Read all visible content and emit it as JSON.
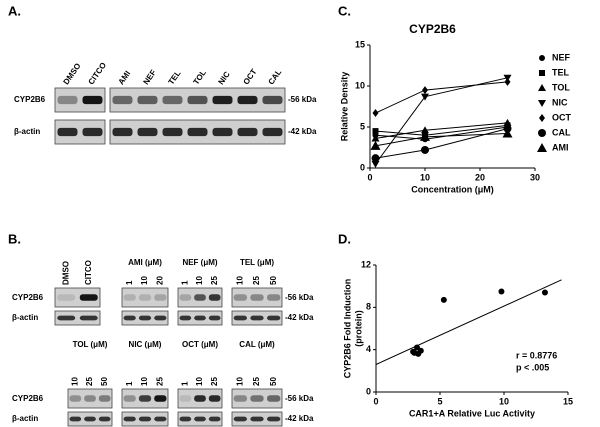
{
  "panel_a": {
    "label": "A.",
    "lanes_left": [
      "DMSO",
      "CITCO"
    ],
    "lanes_right": [
      "AMI",
      "NEF",
      "TEL",
      "TOL",
      "NIC",
      "OCT",
      "CAL"
    ],
    "rows": [
      "CYP2B6",
      "β-actin"
    ],
    "sizes": [
      "-56 kDa",
      "-42 kDa"
    ]
  },
  "panel_b": {
    "label": "B.",
    "rows": [
      "CYP2B6",
      "β-actin"
    ],
    "sizes": [
      "-56 kDa",
      "-42 kDa"
    ],
    "top": [
      {
        "lanes": [
          "DMSO",
          "CITCO"
        ]
      },
      {
        "title": "AMI (μM)",
        "lanes": [
          "1",
          "10",
          "20"
        ]
      },
      {
        "title": "NEF (μM)",
        "lanes": [
          "1",
          "10",
          "25"
        ]
      },
      {
        "title": "TEL (μM)",
        "lanes": [
          "10",
          "25",
          "50"
        ]
      }
    ],
    "bottom": [
      {
        "title": "TOL (μM)",
        "lanes": [
          "10",
          "25",
          "50"
        ]
      },
      {
        "title": "NIC (μM)",
        "lanes": [
          "1",
          "10",
          "25"
        ]
      },
      {
        "title": "OCT (μM)",
        "lanes": [
          "1",
          "10",
          "25"
        ]
      },
      {
        "title": "CAL (μM)",
        "lanes": [
          "10",
          "25",
          "50"
        ]
      }
    ]
  },
  "chart_data": [
    {
      "type": "line",
      "panel": "C.",
      "title": "CYP2B6",
      "x_label": "Concentration (μM)",
      "y_label": "Relative Density",
      "x": [
        1,
        10,
        25
      ],
      "xlim": [
        0,
        30
      ],
      "xticks": [
        0,
        10,
        20,
        30
      ],
      "ylim": [
        0,
        15
      ],
      "yticks": [
        0,
        5,
        10,
        15
      ],
      "legend": "right",
      "color": "#000000",
      "series": [
        {
          "name": "NEF",
          "marker": "circle",
          "values": [
            4.0,
            3.5,
            5.0
          ]
        },
        {
          "name": "TEL",
          "marker": "square",
          "values": [
            4.5,
            4.0,
            5.2
          ]
        },
        {
          "name": "TOL",
          "marker": "triangle",
          "values": [
            3.6,
            4.6,
            5.5
          ]
        },
        {
          "name": "NIC",
          "marker": "triangle-down",
          "values": [
            0.5,
            8.7,
            11.0
          ]
        },
        {
          "name": "OCT",
          "marker": "diamond",
          "values": [
            6.7,
            9.5,
            10.5
          ]
        },
        {
          "name": "CAL",
          "marker": "big-circle",
          "values": [
            1.2,
            2.2,
            4.8
          ]
        },
        {
          "name": "AMI",
          "marker": "big-triangle",
          "values": [
            2.7,
            3.8,
            4.2
          ]
        }
      ]
    },
    {
      "type": "scatter",
      "panel": "D.",
      "x_label": "CAR1+A Relative Luc Activity",
      "y_label": [
        "CYP2B6 Fold Induction",
        "(protein)"
      ],
      "x": [
        2.9,
        3.0,
        3.2,
        3.3,
        3.5,
        5.3,
        9.8,
        13.2
      ],
      "values": [
        3.8,
        3.7,
        4.2,
        3.6,
        3.9,
        8.7,
        9.5,
        9.4
      ],
      "fit": {
        "x": [
          0,
          14.5
        ],
        "y": [
          2.6,
          10.6
        ]
      },
      "annotations": [
        "r = 0.8776",
        "p < .005"
      ],
      "xlim": [
        0,
        15
      ],
      "xticks": [
        0,
        5,
        10,
        15
      ],
      "ylim": [
        0,
        12
      ],
      "yticks": [
        0,
        4,
        8,
        12
      ],
      "color": "#000000"
    }
  ]
}
